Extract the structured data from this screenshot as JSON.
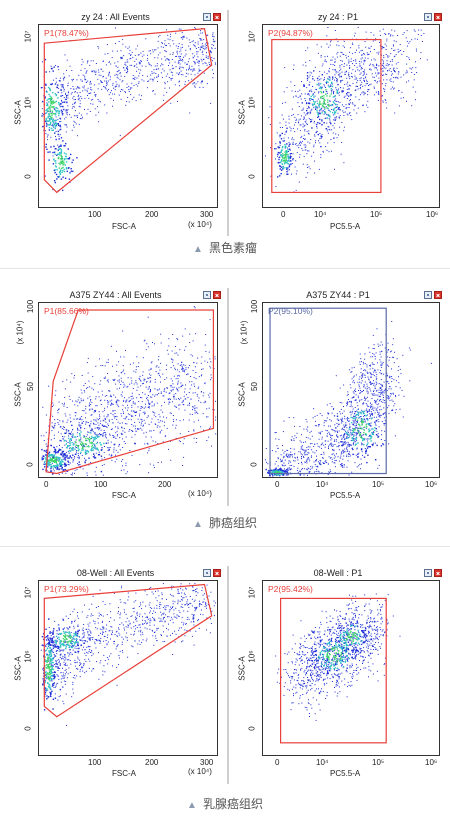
{
  "colors": {
    "gate": "#e8403a",
    "gate_p2_row2": "#5a6aa8",
    "dots": "#1f2fd6",
    "dense": "#2ec4c4",
    "densest": "#3fd56a"
  },
  "panels": [
    {
      "title": "zy 24 : All Events",
      "gate": "P1(78.47%)",
      "xlabel": "FSC-A",
      "ylabel": "SSC-A",
      "x_ticks": [
        "100",
        "200",
        "300"
      ],
      "y_ticks": [
        "10⁷",
        "10⁶",
        "0"
      ],
      "x_mult": "(x 10⁴)",
      "y_mult": ""
    },
    {
      "title": "zy 24 : P1",
      "gate": "P2(94.87%)",
      "xlabel": "PC5.5-A",
      "ylabel": "SSC-A",
      "x_ticks": [
        "0",
        "10⁴",
        "10⁵",
        "10⁶"
      ],
      "y_ticks": [
        "10⁷",
        "10⁶",
        "0"
      ],
      "x_mult": "",
      "y_mult": ""
    },
    {
      "title": "A375 ZY44 : All Events",
      "gate": "P1(85.66%)",
      "xlabel": "FSC-A",
      "ylabel": "SSC-A",
      "x_ticks": [
        "0",
        "100",
        "200"
      ],
      "y_ticks": [
        "100",
        "50",
        "0"
      ],
      "x_mult": "(x 10⁴)",
      "y_mult": "(x 10⁴)"
    },
    {
      "title": "A375 ZY44 : P1",
      "gate": "P2(95.10%)",
      "xlabel": "PC5.5-A",
      "ylabel": "SSC-A",
      "x_ticks": [
        "0",
        "10⁴",
        "10⁵",
        "10⁶"
      ],
      "y_ticks": [
        "100",
        "50",
        "0"
      ],
      "x_mult": "",
      "y_mult": "(x 10⁴)"
    },
    {
      "title": "08-Well : All Events",
      "gate": "P1(73.29%)",
      "xlabel": "FSC-A",
      "ylabel": "SSC-A",
      "x_ticks": [
        "100",
        "200",
        "300"
      ],
      "y_ticks": [
        "10⁷",
        "10⁶",
        "0"
      ],
      "x_mult": "(x 10⁴)",
      "y_mult": ""
    },
    {
      "title": "08-Well : P1",
      "gate": "P2(95.42%)",
      "xlabel": "PC5.5-A",
      "ylabel": "SSC-A",
      "x_ticks": [
        "0",
        "10⁴",
        "10⁵",
        "10⁶"
      ],
      "y_ticks": [
        "10⁷",
        "10⁶",
        "0"
      ],
      "x_mult": "",
      "y_mult": ""
    }
  ],
  "captions": [
    "黑色素瘤",
    "肺癌组织",
    "乳腺癌组织"
  ],
  "chart_data": [
    {
      "type": "scatter",
      "title": "zy 24 : All Events",
      "xlabel": "FSC-A",
      "ylabel": "SSC-A",
      "xlim": [
        0,
        300
      ],
      "x_unit": "(x 10⁴)",
      "y_scale": "log",
      "gates": [
        {
          "name": "P1",
          "percent": 78.47
        }
      ]
    },
    {
      "type": "scatter",
      "title": "zy 24 : P1",
      "xlabel": "PC5.5-A",
      "ylabel": "SSC-A",
      "x_scale": "log",
      "y_scale": "log",
      "gates": [
        {
          "name": "P2",
          "percent": 94.87
        }
      ]
    },
    {
      "type": "scatter",
      "title": "A375 ZY44 : All Events",
      "xlabel": "FSC-A",
      "ylabel": "SSC-A",
      "xlim": [
        0,
        280
      ],
      "ylim": [
        0,
        100
      ],
      "x_unit": "(x 10⁴)",
      "y_unit": "(x 10⁴)",
      "gates": [
        {
          "name": "P1",
          "percent": 85.66
        }
      ]
    },
    {
      "type": "scatter",
      "title": "A375 ZY44 : P1",
      "xlabel": "PC5.5-A",
      "ylabel": "SSC-A",
      "x_scale": "log",
      "ylim": [
        0,
        100
      ],
      "y_unit": "(x 10⁴)",
      "gates": [
        {
          "name": "P2",
          "percent": 95.1
        }
      ]
    },
    {
      "type": "scatter",
      "title": "08-Well : All Events",
      "xlabel": "FSC-A",
      "ylabel": "SSC-A",
      "xlim": [
        0,
        300
      ],
      "x_unit": "(x 10⁴)",
      "y_scale": "log",
      "gates": [
        {
          "name": "P1",
          "percent": 73.29
        }
      ]
    },
    {
      "type": "scatter",
      "title": "08-Well : P1",
      "xlabel": "PC5.5-A",
      "ylabel": "SSC-A",
      "x_scale": "log",
      "y_scale": "log",
      "gates": [
        {
          "name": "P2",
          "percent": 95.42
        }
      ]
    }
  ]
}
